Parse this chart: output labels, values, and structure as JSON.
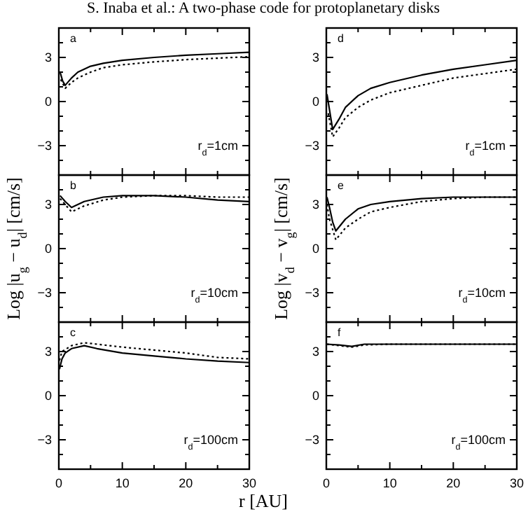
{
  "chart_data": [
    {
      "type": "line",
      "title": "S. Inaba et al.: A two-phase code for protoplanetary disks",
      "annotations": [
        "a",
        "r$_{d}$=1cm"
      ],
      "xlim": [
        0,
        30
      ],
      "xticks": [
        0,
        {
          "value": 5,
          "label": null
        },
        10,
        {
          "value": 15,
          "label": null
        },
        20,
        {
          "value": 25,
          "label": null
        },
        30
      ],
      "ylim": [
        -5,
        5
      ],
      "yticks": [
        {
          "value": -4,
          "label": null
        },
        -3,
        {
          "value": -2,
          "label": null
        },
        {
          "value": -1,
          "label": null
        },
        0,
        {
          "value": 1,
          "label": null
        },
        {
          "value": 2,
          "label": null
        },
        3,
        {
          "value": 4,
          "label": null
        }
      ],
      "tick_labels": "y",
      "series": [
        {
          "color": "#000000",
          "line_style": "solid",
          "x": [
            0.2,
            0.6,
            1,
            2,
            3,
            5,
            7,
            10,
            15,
            20,
            25,
            30
          ],
          "values": [
            2.0,
            1.4,
            1.1,
            1.6,
            2.0,
            2.4,
            2.6,
            2.8,
            3.0,
            3.15,
            3.25,
            3.35
          ]
        },
        {
          "color": "#000000",
          "line_style": "dotted",
          "x": [
            0.3,
            1,
            2,
            3,
            5,
            7,
            10,
            15,
            20,
            25,
            30
          ],
          "values": [
            1.5,
            0.9,
            1.3,
            1.6,
            2.0,
            2.3,
            2.5,
            2.7,
            2.85,
            2.95,
            3.05
          ]
        }
      ]
    },
    {
      "type": "line",
      "annotations": [
        "d",
        "r$_{d}$=1cm"
      ],
      "xlim": [
        0,
        30
      ],
      "xticks": [
        0,
        {
          "value": 5,
          "label": null
        },
        10,
        {
          "value": 15,
          "label": null
        },
        20,
        {
          "value": 25,
          "label": null
        },
        30
      ],
      "ylim": [
        -5,
        5
      ],
      "yticks": [
        {
          "value": -4,
          "label": null
        },
        -3,
        {
          "value": -2,
          "label": null
        },
        {
          "value": -1,
          "label": null
        },
        0,
        {
          "value": 1,
          "label": null
        },
        {
          "value": 2,
          "label": null
        },
        3,
        {
          "value": 4,
          "label": null
        }
      ],
      "tick_labels": "y",
      "series": [
        {
          "color": "#000000",
          "line_style": "solid",
          "x": [
            0.1,
            0.4,
            1,
            2,
            3,
            5,
            7,
            10,
            15,
            20,
            25,
            30
          ],
          "values": [
            0.5,
            -0.3,
            -1.9,
            -1.2,
            -0.4,
            0.4,
            0.9,
            1.3,
            1.8,
            2.2,
            2.5,
            2.8
          ]
        },
        {
          "color": "#000000",
          "line_style": "dotted",
          "x": [
            0.3,
            1,
            2,
            3,
            5,
            7,
            10,
            15,
            20,
            25,
            30
          ],
          "values": [
            -0.8,
            -2.4,
            -1.8,
            -1.1,
            -0.4,
            0.1,
            0.6,
            1.1,
            1.6,
            1.9,
            2.2
          ]
        }
      ]
    },
    {
      "type": "line",
      "ylabel": "Log |u$_{g}$ − u$_{d}$| [cm/s]",
      "annotations": [
        "b",
        "r$_{d}$=10cm"
      ],
      "xlim": [
        0,
        30
      ],
      "xticks": [
        0,
        {
          "value": 5,
          "label": null
        },
        10,
        {
          "value": 15,
          "label": null
        },
        20,
        {
          "value": 25,
          "label": null
        },
        30
      ],
      "ylim": [
        -5,
        5
      ],
      "yticks": [
        {
          "value": -4,
          "label": null
        },
        -3,
        {
          "value": -2,
          "label": null
        },
        {
          "value": -1,
          "label": null
        },
        0,
        {
          "value": 1,
          "label": null
        },
        {
          "value": 2,
          "label": null
        },
        3,
        {
          "value": 4,
          "label": null
        }
      ],
      "tick_labels": "y",
      "series": [
        {
          "color": "#000000",
          "line_style": "solid",
          "x": [
            0.2,
            1,
            2,
            4,
            7,
            10,
            15,
            20,
            25,
            30
          ],
          "values": [
            3.6,
            3.2,
            2.8,
            3.2,
            3.5,
            3.6,
            3.6,
            3.5,
            3.3,
            3.2
          ]
        },
        {
          "color": "#000000",
          "line_style": "dotted",
          "x": [
            0.2,
            1,
            2,
            4,
            7,
            10,
            15,
            20,
            25,
            30
          ],
          "values": [
            3.4,
            3.0,
            2.5,
            2.9,
            3.3,
            3.5,
            3.6,
            3.6,
            3.5,
            3.5
          ]
        }
      ]
    },
    {
      "type": "line",
      "ylabel": "Log |v$_{d}$ − v$_{g}$| [cm/s]",
      "annotations": [
        "e",
        "r$_{d}$=10cm"
      ],
      "xlim": [
        0,
        30
      ],
      "xticks": [
        0,
        {
          "value": 5,
          "label": null
        },
        10,
        {
          "value": 15,
          "label": null
        },
        20,
        {
          "value": 25,
          "label": null
        },
        30
      ],
      "ylim": [
        -5,
        5
      ],
      "yticks": [
        {
          "value": -4,
          "label": null
        },
        -3,
        {
          "value": -2,
          "label": null
        },
        {
          "value": -1,
          "label": null
        },
        0,
        {
          "value": 1,
          "label": null
        },
        {
          "value": 2,
          "label": null
        },
        3,
        {
          "value": 4,
          "label": null
        }
      ],
      "tick_labels": "y",
      "series": [
        {
          "color": "#000000",
          "line_style": "solid",
          "x": [
            0.1,
            0.5,
            1,
            1.5,
            3,
            5,
            7,
            10,
            15,
            20,
            25,
            30
          ],
          "values": [
            3.5,
            2.8,
            1.8,
            1.2,
            2.0,
            2.7,
            3.0,
            3.2,
            3.4,
            3.5,
            3.5,
            3.5
          ]
        },
        {
          "color": "#000000",
          "line_style": "dotted",
          "x": [
            0.1,
            0.5,
            1.5,
            3,
            5,
            7,
            10,
            15,
            20,
            25,
            30
          ],
          "values": [
            3.0,
            2.0,
            0.6,
            1.4,
            2.0,
            2.5,
            2.8,
            3.2,
            3.4,
            3.5,
            3.5
          ]
        }
      ]
    },
    {
      "type": "line",
      "annotations": [
        "c",
        "r$_{d}$=100cm"
      ],
      "xlim": [
        0,
        30
      ],
      "xticks": [
        0,
        {
          "value": 5,
          "label": null
        },
        10,
        {
          "value": 15,
          "label": null
        },
        20,
        {
          "value": 25,
          "label": null
        },
        30
      ],
      "ylim": [
        -5,
        5
      ],
      "yticks": [
        {
          "value": -4,
          "label": null
        },
        -3,
        {
          "value": -2,
          "label": null
        },
        {
          "value": -1,
          "label": null
        },
        0,
        {
          "value": 1,
          "label": null
        },
        {
          "value": 2,
          "label": null
        },
        3,
        {
          "value": 4,
          "label": null
        }
      ],
      "series": [
        {
          "color": "#000000",
          "line_style": "solid",
          "x": [
            0.1,
            0.5,
            1,
            2,
            4,
            6,
            10,
            15,
            20,
            25,
            30
          ],
          "values": [
            1.8,
            2.5,
            2.9,
            3.2,
            3.4,
            3.2,
            2.9,
            2.7,
            2.5,
            2.35,
            2.25
          ]
        },
        {
          "color": "#000000",
          "line_style": "dotted",
          "x": [
            0.1,
            0.5,
            2,
            4,
            6,
            10,
            15,
            20,
            25,
            30
          ],
          "values": [
            2.4,
            3.0,
            3.4,
            3.6,
            3.5,
            3.3,
            3.1,
            2.9,
            2.6,
            2.5
          ]
        }
      ]
    },
    {
      "type": "line",
      "xlabel": "r [AU]",
      "annotations": [
        "f",
        "r$_{d}$=100cm"
      ],
      "xlim": [
        0,
        30
      ],
      "xticks": [
        0,
        {
          "value": 5,
          "label": null
        },
        10,
        {
          "value": 15,
          "label": null
        },
        20,
        {
          "value": 25,
          "label": null
        },
        30
      ],
      "ylim": [
        -5,
        5
      ],
      "yticks": [
        {
          "value": -4,
          "label": null
        },
        -3,
        {
          "value": -2,
          "label": null
        },
        {
          "value": -1,
          "label": null
        },
        0,
        {
          "value": 1,
          "label": null
        },
        {
          "value": 2,
          "label": null
        },
        3,
        {
          "value": 4,
          "label": null
        }
      ],
      "series": [
        {
          "color": "#000000",
          "line_style": "solid",
          "x": [
            0.1,
            2,
            4,
            6,
            10,
            20,
            30
          ],
          "values": [
            3.5,
            3.45,
            3.35,
            3.5,
            3.5,
            3.5,
            3.5
          ]
        },
        {
          "color": "#000000",
          "line_style": "dotted",
          "x": [
            0.1,
            3,
            4,
            6,
            10,
            20,
            30
          ],
          "values": [
            3.5,
            3.35,
            3.3,
            3.45,
            3.5,
            3.5,
            3.5
          ]
        }
      ]
    }
  ]
}
